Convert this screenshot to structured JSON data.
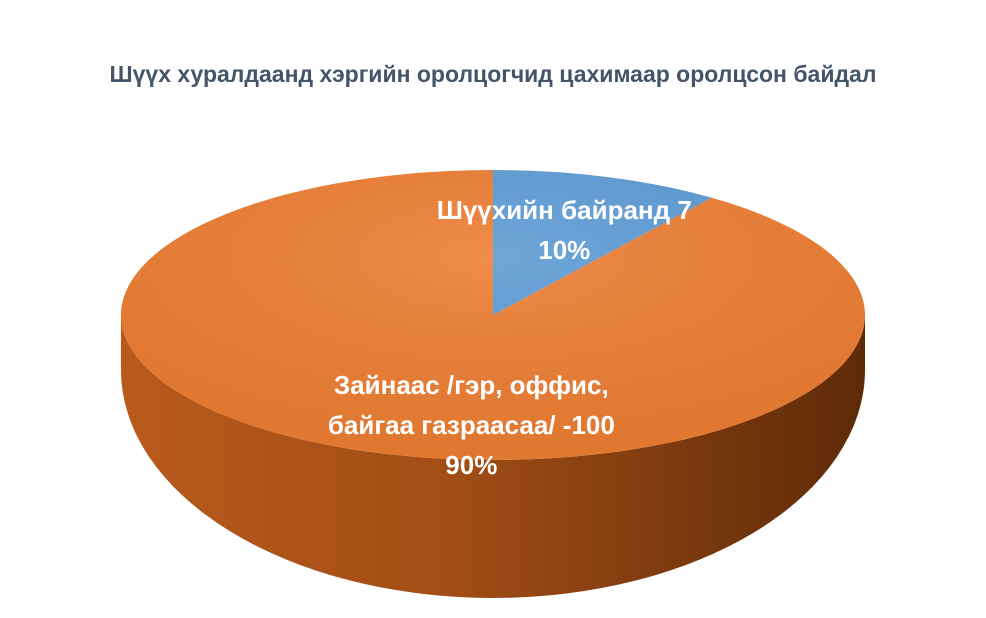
{
  "chart_data": {
    "type": "pie",
    "title": "Шүүх хуралдаанд хэргийн оролцогчид цахимаар оролцсон байдал",
    "categories": [
      "Шүүхийн байранд 7",
      "Зайнаас /гэр, оффис, байгаа газраасаа/ -100"
    ],
    "values": [
      10,
      90
    ],
    "value_labels": [
      "10%",
      "90%"
    ],
    "colors": [
      "#5b9bd5",
      "#ed7d31"
    ]
  }
}
